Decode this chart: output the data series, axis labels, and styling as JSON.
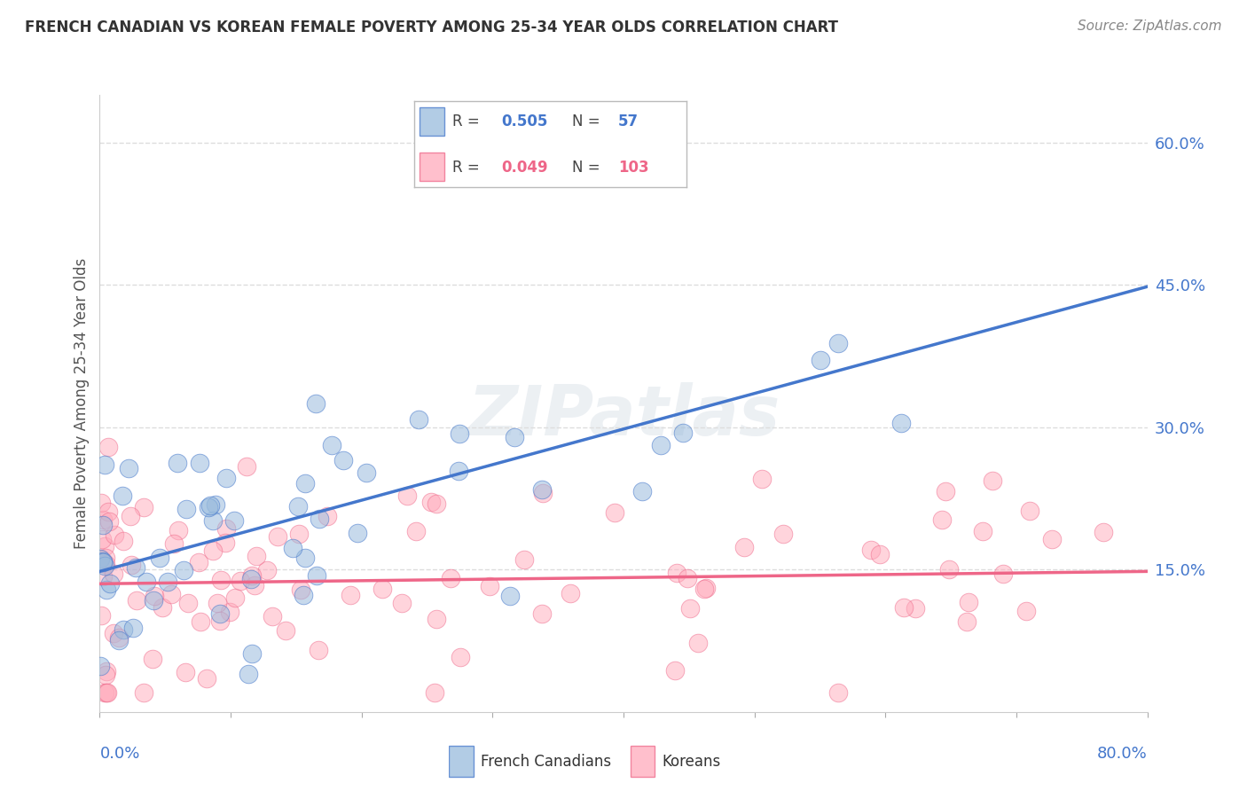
{
  "title": "FRENCH CANADIAN VS KOREAN FEMALE POVERTY AMONG 25-34 YEAR OLDS CORRELATION CHART",
  "source": "Source: ZipAtlas.com",
  "ylabel": "Female Poverty Among 25-34 Year Olds",
  "xlim": [
    0.0,
    0.8
  ],
  "ylim": [
    0.0,
    0.65
  ],
  "yticks": [
    0.15,
    0.3,
    0.45,
    0.6
  ],
  "ytick_labels": [
    "15.0%",
    "30.0%",
    "45.0%",
    "60.0%"
  ],
  "blue_R": 0.505,
  "blue_N": 57,
  "pink_R": 0.049,
  "pink_N": 103,
  "blue_color": "#99BBDD",
  "pink_color": "#FFAABB",
  "blue_line_color": "#4477CC",
  "pink_line_color": "#EE6688",
  "watermark": "ZIPatlas",
  "legend_french": "French Canadians",
  "legend_korean": "Koreans",
  "blue_line_x0": 0.0,
  "blue_line_y0": 0.148,
  "blue_line_x1": 0.8,
  "blue_line_y1": 0.448,
  "pink_line_x0": 0.0,
  "pink_line_y0": 0.135,
  "pink_line_x1": 0.8,
  "pink_line_y1": 0.148,
  "seed": 7
}
